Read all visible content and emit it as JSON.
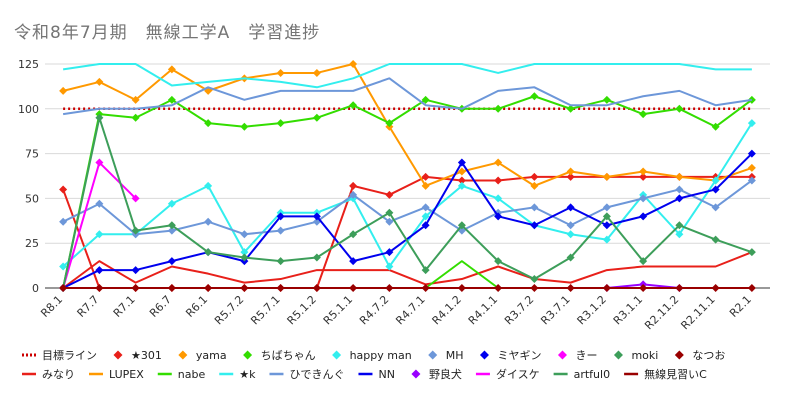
{
  "title": "令和8年7月期　無線工学A　学習進捗",
  "chart_data": {
    "type": "line",
    "title": "令和8年7月期　無線工学A　学習進捗",
    "categories": [
      "R8.1",
      "R7.7",
      "R7.1",
      "R6.7",
      "R6.1",
      "R5.7.2",
      "R5.7.1",
      "R5.1.2",
      "R5.1.1",
      "R4.7.2",
      "R4.7.1",
      "R4.1.2",
      "R4.1.1",
      "R3.7.2",
      "R3.7.1",
      "R3.1.2",
      "R3.1.1",
      "R2.11.2",
      "R2.11.1",
      "R2.1"
    ],
    "ylim": [
      0,
      125
    ],
    "yticks": [
      0,
      25,
      50,
      75,
      100,
      125
    ],
    "grid": true,
    "legend_position": "bottom",
    "series": [
      {
        "name": "目標ライン",
        "color": "#cc0000",
        "style": "dotted",
        "marker": "none",
        "values": [
          100,
          100,
          100,
          100,
          100,
          100,
          100,
          100,
          100,
          100,
          100,
          100,
          100,
          100,
          100,
          100,
          100,
          100,
          100,
          100
        ]
      },
      {
        "name": "みなり",
        "color": "#e8201a",
        "style": "line",
        "marker": "none",
        "values": [
          0,
          15,
          3,
          12,
          8,
          3,
          5,
          10,
          10,
          10,
          2,
          5,
          12,
          5,
          3,
          10,
          12,
          12,
          12,
          20
        ]
      },
      {
        "name": "★301",
        "color": "#e8201a",
        "style": "line",
        "marker": "diamond",
        "values": [
          55,
          0,
          0,
          0,
          0,
          0,
          0,
          0,
          57,
          52,
          62,
          60,
          60,
          62,
          62,
          62,
          62,
          62,
          62,
          62
        ]
      },
      {
        "name": "LUPEX",
        "color": "#ff9900",
        "style": "line",
        "marker": "none",
        "values": [
          null,
          null,
          null,
          null,
          null,
          null,
          null,
          null,
          null,
          null,
          null,
          null,
          null,
          null,
          null,
          null,
          null,
          null,
          null,
          null
        ]
      },
      {
        "name": "yama",
        "color": "#ff9900",
        "style": "line",
        "marker": "diamond",
        "values": [
          110,
          115,
          105,
          122,
          110,
          117,
          120,
          120,
          125,
          90,
          57,
          65,
          70,
          57,
          65,
          62,
          65,
          62,
          60,
          67
        ]
      },
      {
        "name": "nabe",
        "color": "#33dd00",
        "style": "line",
        "marker": "none",
        "values": [
          null,
          null,
          null,
          null,
          null,
          null,
          null,
          null,
          null,
          null,
          0,
          15,
          0,
          null,
          null,
          null,
          null,
          null,
          null,
          null
        ]
      },
      {
        "name": "ちばちゃん",
        "color": "#33dd00",
        "style": "line",
        "marker": "diamond",
        "values": [
          0,
          97,
          95,
          105,
          92,
          90,
          92,
          95,
          102,
          92,
          105,
          100,
          100,
          107,
          100,
          105,
          97,
          100,
          90,
          105
        ]
      },
      {
        "name": "★k",
        "color": "#33eeee",
        "style": "line",
        "marker": "none",
        "values": [
          122,
          125,
          125,
          113,
          115,
          117,
          115,
          112,
          117,
          125,
          125,
          125,
          120,
          125,
          125,
          125,
          125,
          125,
          122,
          122
        ]
      },
      {
        "name": "happy man",
        "color": "#33eeee",
        "style": "line",
        "marker": "diamond",
        "values": [
          12,
          30,
          30,
          47,
          57,
          20,
          42,
          42,
          50,
          12,
          40,
          57,
          50,
          35,
          30,
          27,
          52,
          30,
          60,
          92
        ]
      },
      {
        "name": "ひできんぐ",
        "color": "#6d97d9",
        "style": "line",
        "marker": "none",
        "values": [
          97,
          100,
          100,
          102,
          112,
          105,
          110,
          110,
          110,
          117,
          102,
          100,
          110,
          112,
          102,
          102,
          107,
          110,
          102,
          105
        ]
      },
      {
        "name": "MH",
        "color": "#6d97d9",
        "style": "line",
        "marker": "diamond",
        "values": [
          37,
          47,
          30,
          32,
          37,
          30,
          32,
          37,
          52,
          37,
          45,
          32,
          42,
          45,
          35,
          45,
          50,
          55,
          45,
          60
        ]
      },
      {
        "name": "NN",
        "color": "#0000ee",
        "style": "line",
        "marker": "none",
        "values": [
          null,
          null,
          null,
          null,
          null,
          null,
          null,
          null,
          null,
          null,
          null,
          null,
          null,
          null,
          null,
          null,
          null,
          null,
          null,
          null
        ]
      },
      {
        "name": "ミヤギン",
        "color": "#0000ee",
        "style": "line",
        "marker": "diamond",
        "values": [
          0,
          10,
          10,
          15,
          20,
          15,
          40,
          40,
          15,
          20,
          35,
          70,
          40,
          35,
          45,
          35,
          40,
          50,
          55,
          75
        ]
      },
      {
        "name": "野良犬",
        "color": "#9900ff",
        "style": "line",
        "marker": "diamond",
        "values": [
          null,
          null,
          null,
          null,
          null,
          null,
          null,
          null,
          null,
          null,
          null,
          null,
          null,
          null,
          null,
          0,
          2,
          0,
          null,
          null
        ]
      },
      {
        "name": "きー",
        "color": "#ff00ff",
        "style": "line",
        "marker": "diamond",
        "values": [
          0,
          70,
          50,
          null,
          null,
          null,
          null,
          null,
          null,
          null,
          null,
          null,
          null,
          null,
          null,
          null,
          null,
          null,
          null,
          null
        ]
      },
      {
        "name": "ダイスケ",
        "color": "#ff00ff",
        "style": "line",
        "marker": "none",
        "values": [
          null,
          null,
          null,
          null,
          null,
          null,
          null,
          null,
          null,
          null,
          null,
          null,
          null,
          null,
          null,
          null,
          null,
          null,
          null,
          null
        ]
      },
      {
        "name": "moki",
        "color": "#3d9e5a",
        "style": "line",
        "marker": "diamond",
        "values": [
          0,
          95,
          32,
          35,
          20,
          17,
          15,
          17,
          30,
          42,
          10,
          35,
          15,
          5,
          17,
          40,
          15,
          35,
          27,
          20
        ]
      },
      {
        "name": "artful0",
        "color": "#3d9e5a",
        "style": "line",
        "marker": "none",
        "values": [
          null,
          null,
          null,
          null,
          null,
          null,
          null,
          null,
          null,
          null,
          null,
          null,
          null,
          null,
          null,
          null,
          null,
          null,
          null,
          null
        ]
      },
      {
        "name": "なつお",
        "color": "#990000",
        "style": "line",
        "marker": "diamond",
        "values": [
          0,
          0,
          0,
          0,
          0,
          0,
          0,
          0,
          0,
          0,
          0,
          0,
          0,
          0,
          0,
          0,
          0,
          0,
          0,
          0
        ]
      },
      {
        "name": "無線見習いC",
        "color": "#990000",
        "style": "line",
        "marker": "none",
        "values": [
          null,
          null,
          null,
          null,
          null,
          null,
          null,
          null,
          null,
          null,
          null,
          null,
          null,
          null,
          null,
          null,
          null,
          null,
          null,
          null
        ]
      }
    ],
    "legend_row1": [
      "目標ライン",
      "★301",
      "yama",
      "ちばちゃん",
      "happy man",
      "MH",
      "ミヤギン",
      "きー",
      "moki",
      "なつお"
    ],
    "legend_row2": [
      "みなり",
      "LUPEX",
      "nabe",
      "★k",
      "ひできんぐ",
      "NN",
      "野良犬",
      "ダイスケ",
      "artful0",
      "無線見習いC"
    ]
  }
}
